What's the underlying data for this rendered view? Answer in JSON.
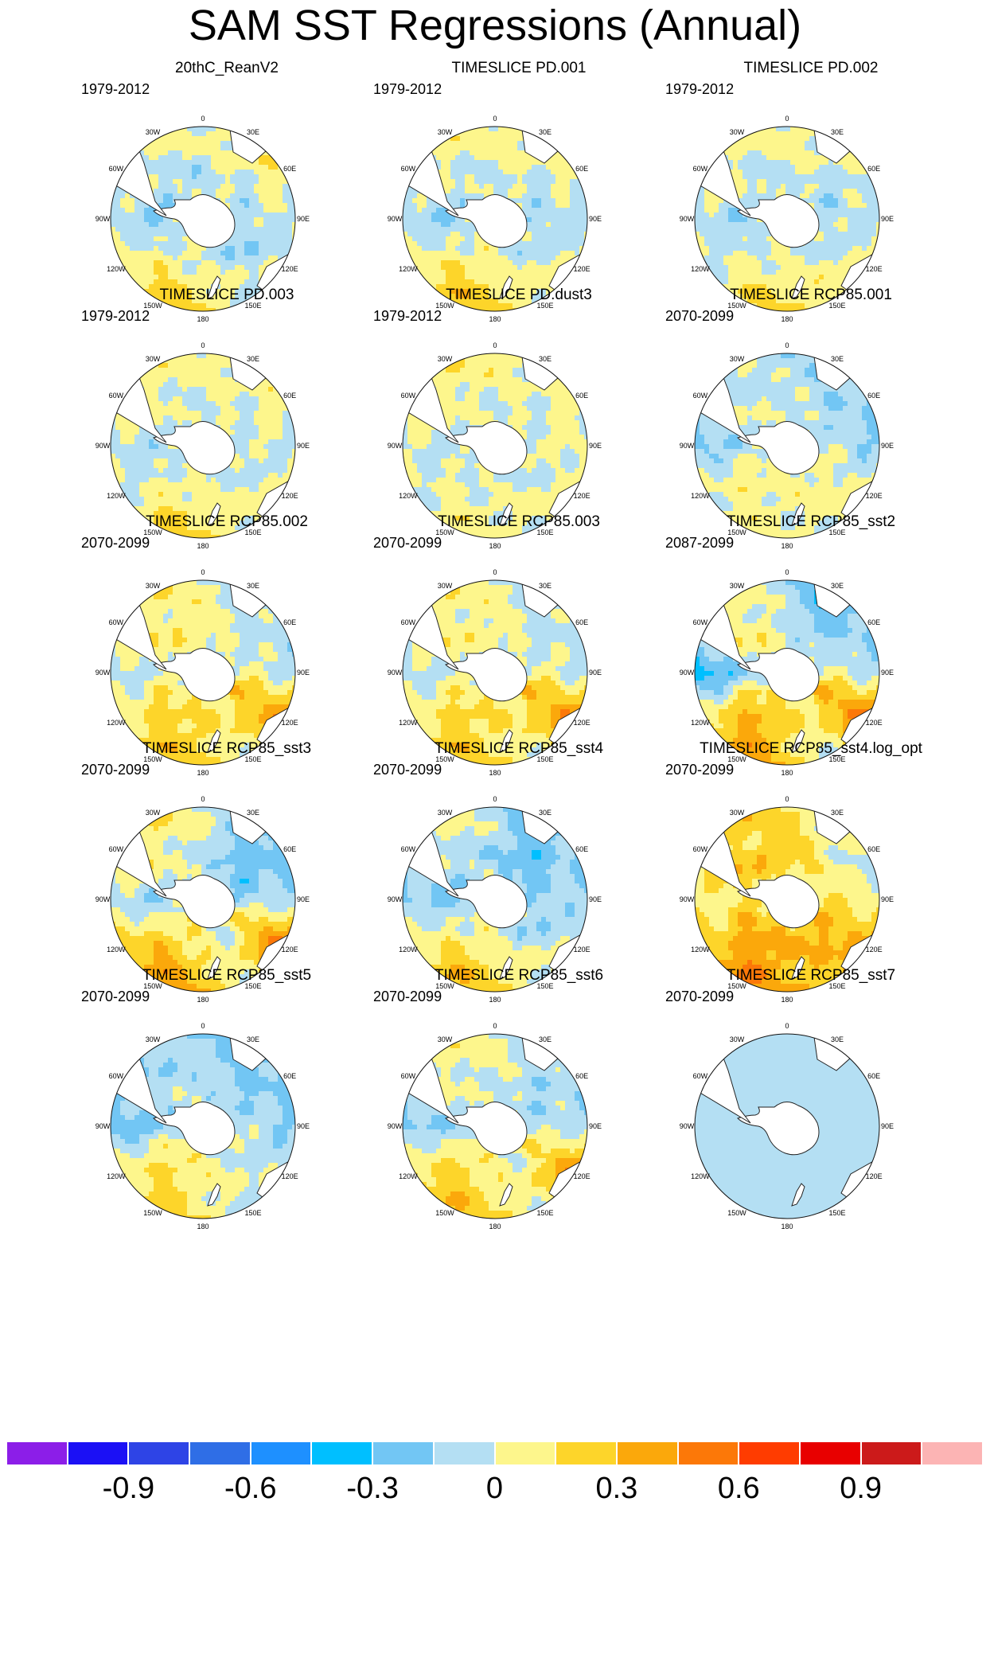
{
  "title": "SAM SST Regressions (Annual)",
  "lon_labels": [
    "0",
    "30E",
    "60E",
    "90E",
    "120E",
    "150E",
    "180",
    "150W",
    "120W",
    "90W",
    "60W",
    "30W"
  ],
  "colorbar": {
    "colors": [
      "#8c1ee8",
      "#1b10f5",
      "#2e44e6",
      "#2f6ee6",
      "#1e90ff",
      "#00bfff",
      "#72c6f4",
      "#b4dff3",
      "#fdf68c",
      "#fdd52a",
      "#fba80b",
      "#fc7808",
      "#ff3c00",
      "#e80000",
      "#cc1a1a",
      "#fcb4b4"
    ],
    "labels": [
      "-0.9",
      "-0.6",
      "-0.3",
      "0",
      "0.3",
      "0.6",
      "0.9"
    ],
    "label_positions": [
      2,
      4,
      6,
      8,
      10,
      12,
      14
    ]
  },
  "panels": [
    {
      "title": "20thC_ReanV2",
      "period": "1979-2012",
      "pattern": [
        0.0,
        0.1,
        0.05,
        0.0,
        -0.05,
        0.0,
        0.12,
        0.18,
        0.05,
        -0.08,
        -0.02,
        0.04
      ],
      "ring": -0.1
    },
    {
      "title": "TIMESLICE PD.001",
      "period": "1979-2012",
      "pattern": [
        0.05,
        0.08,
        0.0,
        -0.05,
        0.0,
        0.05,
        0.18,
        0.22,
        0.05,
        -0.12,
        0.02,
        0.05
      ],
      "ring": -0.08
    },
    {
      "title": "TIMESLICE PD.002",
      "period": "1979-2012",
      "pattern": [
        0.05,
        0.05,
        -0.04,
        -0.02,
        0.02,
        0.08,
        0.15,
        0.12,
        0.0,
        -0.08,
        0.05,
        0.02
      ],
      "ring": -0.08
    },
    {
      "title": "TIMESLICE PD.003",
      "period": "1979-2012",
      "pattern": [
        0.05,
        0.06,
        0.04,
        0.0,
        0.02,
        0.05,
        0.12,
        0.15,
        0.0,
        -0.05,
        0.05,
        0.05
      ],
      "ring": -0.05
    },
    {
      "title": "TIMESLICE PD.dust3",
      "period": "1979-2012",
      "pattern": [
        0.06,
        0.05,
        0.04,
        0.05,
        0.02,
        0.04,
        0.05,
        0.06,
        0.02,
        -0.02,
        0.05,
        0.08
      ],
      "ring": -0.04
    },
    {
      "title": "TIMESLICE RCP85.001",
      "period": "2070-2099",
      "pattern": [
        -0.08,
        -0.12,
        -0.15,
        -0.12,
        0.04,
        0.04,
        0.02,
        0.06,
        0.04,
        -0.18,
        -0.06,
        -0.05
      ],
      "ring": 0.04
    },
    {
      "title": "TIMESLICE RCP85.002",
      "period": "2070-2099",
      "pattern": [
        0.05,
        -0.05,
        -0.08,
        -0.04,
        0.35,
        0.05,
        0.18,
        0.22,
        0.12,
        -0.06,
        0.06,
        0.08
      ],
      "ring": 0.06
    },
    {
      "title": "TIMESLICE RCP85.003",
      "period": "2070-2099",
      "pattern": [
        0.05,
        -0.05,
        -0.06,
        -0.03,
        0.38,
        0.05,
        0.15,
        0.22,
        0.1,
        -0.06,
        0.05,
        0.06
      ],
      "ring": 0.05
    },
    {
      "title": "TIMESLICE RCP85_sst2",
      "period": "2087-2099",
      "pattern": [
        -0.08,
        -0.28,
        -0.15,
        -0.05,
        0.45,
        0.02,
        0.18,
        0.35,
        0.16,
        -0.35,
        0.05,
        0.05
      ],
      "ring": 0.06
    },
    {
      "title": "TIMESLICE RCP85_sst3",
      "period": "2070-2099",
      "pattern": [
        0.04,
        -0.15,
        -0.22,
        -0.08,
        0.42,
        0.04,
        0.22,
        0.35,
        0.18,
        -0.08,
        0.12,
        0.08
      ],
      "ring": -0.08
    },
    {
      "title": "TIMESLICE RCP85_sst4",
      "period": "2070-2099",
      "pattern": [
        -0.06,
        -0.24,
        -0.15,
        -0.08,
        -0.04,
        0.04,
        0.18,
        0.25,
        0.08,
        -0.16,
        -0.05,
        0.04
      ],
      "ring": -0.1
    },
    {
      "title": "TIMESLICE RCP85_sst4.log_opt",
      "period": "2070-2099",
      "pattern": [
        0.18,
        0.05,
        -0.04,
        0.05,
        0.3,
        0.25,
        0.28,
        0.42,
        0.22,
        0.05,
        0.18,
        0.18
      ],
      "ring": 0.14
    },
    {
      "title": "TIMESLICE RCP85_sst5",
      "period": "2070-2099",
      "pattern": [
        -0.1,
        -0.18,
        -0.18,
        -0.12,
        -0.04,
        -0.02,
        0.08,
        0.18,
        0.1,
        -0.24,
        -0.12,
        -0.1
      ],
      "ring": 0.02
    },
    {
      "title": "TIMESLICE RCP85_sst6",
      "period": "2070-2099",
      "pattern": [
        0.05,
        -0.06,
        -0.1,
        -0.06,
        0.35,
        0.04,
        0.15,
        0.26,
        0.16,
        -0.18,
        0.02,
        0.05
      ],
      "ring": -0.04
    },
    {
      "title": "TIMESLICE RCP85_sst7",
      "period": "2070-2099",
      "pattern": [
        -0.05,
        -0.05,
        -0.05,
        -0.05,
        -0.05,
        -0.05,
        -0.05,
        -0.05,
        -0.05,
        -0.05,
        -0.05,
        -0.05
      ],
      "ring": -0.05,
      "uniform": true
    }
  ]
}
